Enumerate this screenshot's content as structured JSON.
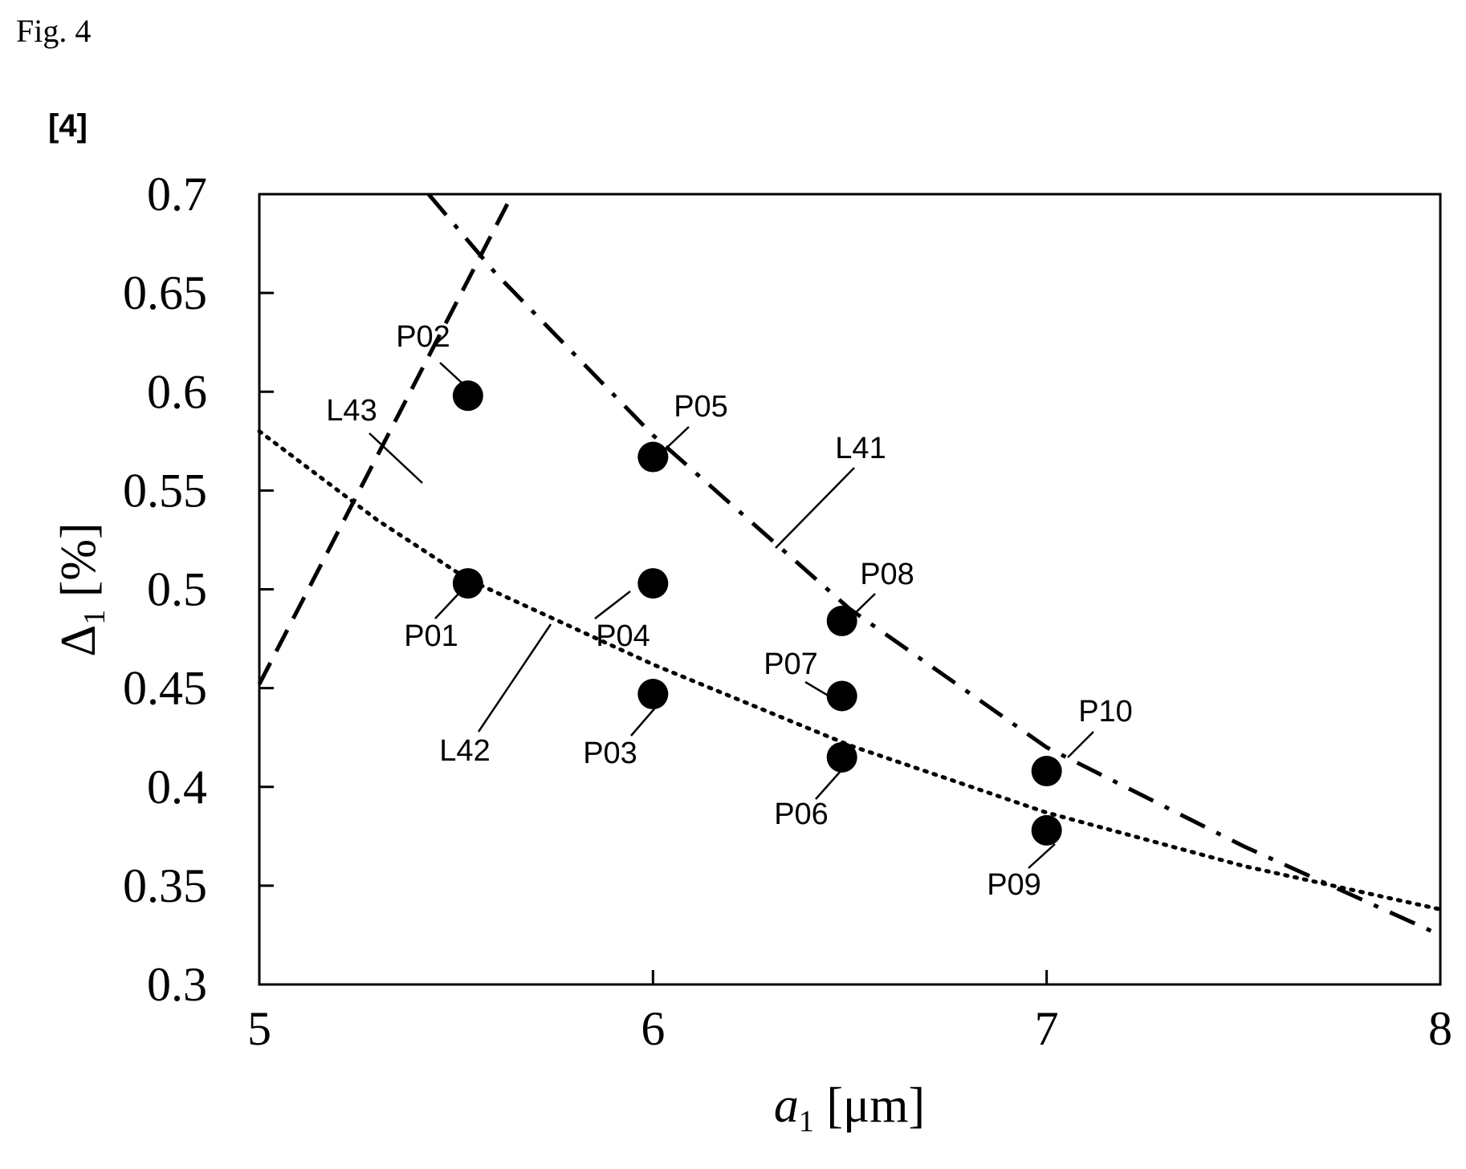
{
  "figure_label": "Fig. 4",
  "paragraph_label": "[4]",
  "chart_data": {
    "type": "scatter",
    "xlabel": {
      "main": "a",
      "sub": "1",
      "unit": " [μm]"
    },
    "ylabel": {
      "main": "Δ",
      "sub": "1",
      "unit": " [%]"
    },
    "xlim": [
      5,
      8
    ],
    "ylim": [
      0.3,
      0.7
    ],
    "x_ticks": [
      5,
      6,
      7,
      8
    ],
    "y_ticks": [
      "0.3",
      "0.35",
      "0.4",
      "0.45",
      "0.5",
      "0.55",
      "0.6",
      "0.65",
      "0.7"
    ],
    "grid": false,
    "points": [
      {
        "name": "P01",
        "x": 5.53,
        "y": 0.503
      },
      {
        "name": "P02",
        "x": 5.53,
        "y": 0.598
      },
      {
        "name": "P03",
        "x": 6.0,
        "y": 0.447
      },
      {
        "name": "P04",
        "x": 6.0,
        "y": 0.503
      },
      {
        "name": "P05",
        "x": 6.0,
        "y": 0.567
      },
      {
        "name": "P06",
        "x": 6.48,
        "y": 0.415
      },
      {
        "name": "P07",
        "x": 6.48,
        "y": 0.446
      },
      {
        "name": "P08",
        "x": 6.48,
        "y": 0.484
      },
      {
        "name": "P09",
        "x": 7.0,
        "y": 0.378
      },
      {
        "name": "P10",
        "x": 7.0,
        "y": 0.408
      }
    ],
    "lines": [
      {
        "name": "L41",
        "style": "dash-dot",
        "points": [
          [
            5.43,
            0.7
          ],
          [
            5.6,
            0.66
          ],
          [
            6.0,
            0.578
          ],
          [
            6.5,
            0.49
          ],
          [
            7.0,
            0.42
          ],
          [
            7.5,
            0.37
          ],
          [
            8.0,
            0.325
          ]
        ]
      },
      {
        "name": "L42",
        "style": "dotted",
        "points": [
          [
            5.0,
            0.58
          ],
          [
            5.3,
            0.535
          ],
          [
            5.53,
            0.505
          ],
          [
            6.0,
            0.462
          ],
          [
            6.5,
            0.421
          ],
          [
            7.0,
            0.387
          ],
          [
            7.5,
            0.36
          ],
          [
            8.0,
            0.338
          ]
        ]
      },
      {
        "name": "L43",
        "style": "dashed",
        "points": [
          [
            5.0,
            0.452
          ],
          [
            5.63,
            0.695
          ]
        ]
      }
    ]
  }
}
